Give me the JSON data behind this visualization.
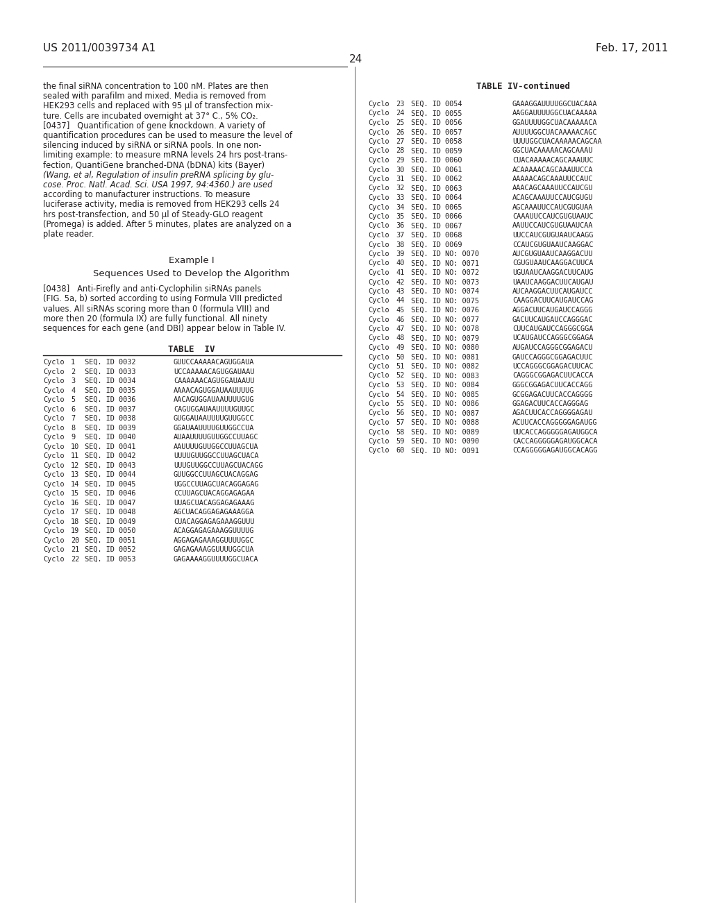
{
  "patent_number": "US 2011/0039734 A1",
  "date": "Feb. 17, 2011",
  "page_number": "24",
  "background_color": "#ffffff",
  "text_color": "#231f20",
  "paragraph_text": [
    "the final siRNA concentration to 100 nM. Plates are then",
    "sealed with parafilm and mixed. Media is removed from",
    "HEK293 cells and replaced with 95 μl of transfection mix-",
    "ture. Cells are incubated overnight at 37° C., 5% CO₂.",
    "[0437]   Quantification of gene knockdown. A variety of",
    "quantification procedures can be used to measure the level of",
    "silencing induced by siRNA or siRNA pools. In one non-",
    "limiting example: to measure mRNA levels 24 hrs post-trans-",
    "fection, QuantiGene branched-DNA (bDNA) kits (Bayer)",
    "(Wang, et al, Regulation of insulin preRNA splicing by glu-",
    "cose. Proc. Natl. Acad. Sci. USA 1997, 94:4360.) are used",
    "according to manufacturer instructions. To measure",
    "luciferase activity, media is removed from HEK293 cells 24",
    "hrs post-transfection, and 50 μl of Steady-GLO reagent",
    "(Promega) is added. After 5 minutes, plates are analyzed on a",
    "plate reader."
  ],
  "italic_indices": [
    9,
    10
  ],
  "example_title": "Example I",
  "example_subtitle": "Sequences Used to Develop the Algorithm",
  "paragraph2_text": [
    "[0438]   Anti-Firefly and anti-Cyclophilin siRNAs panels",
    "(FIG. 5a, b) sorted according to using Formula VIII predicted",
    "values. All siRNAs scoring more than 0 (formula VIII) and",
    "more then 20 (formula IX) are fully functional. All ninety",
    "sequences for each gene (and DBI) appear below in Table IV."
  ],
  "table_title": "TABLE  IV",
  "table_continued_title": "TABLE IV-continued",
  "table_left_rows": [
    [
      "Cyclo",
      "1",
      "SEQ. ID 0032",
      "GUUCCAAAAACAGUGGAUA"
    ],
    [
      "Cyclo",
      "2",
      "SEQ. ID 0033",
      "UCCAAAAACAGUGGAUAAU"
    ],
    [
      "Cyclo",
      "3",
      "SEQ. ID 0034",
      "CAAAAAACAGUGGAUAAUU"
    ],
    [
      "Cyclo",
      "4",
      "SEQ. ID 0035",
      "AAAACAGUGGAUAAUUUUG"
    ],
    [
      "Cyclo",
      "5",
      "SEQ. ID 0036",
      "AACAGUGGAUAAUUUUGUG"
    ],
    [
      "Cyclo",
      "6",
      "SEQ. ID 0037",
      "CAGUGGAUAAUUUUGUUGC"
    ],
    [
      "Cyclo",
      "7",
      "SEQ. ID 0038",
      "GUGGAUAAUUUUGUUGGCC"
    ],
    [
      "Cyclo",
      "8",
      "SEQ. ID 0039",
      "GGAUAAUUUUGUUGGCCUA"
    ],
    [
      "Cyclo",
      "9",
      "SEQ. ID 0040",
      "AUAAUUUUGUUGGCCUUAGC"
    ],
    [
      "Cyclo",
      "10",
      "SEQ. ID 0041",
      "AAUUUUGUUGGCCUUAGCUA"
    ],
    [
      "Cyclo",
      "11",
      "SEQ. ID 0042",
      "UUUUGUUGGCCUUAGCUACA"
    ],
    [
      "Cyclo",
      "12",
      "SEQ. ID 0043",
      "UUUGUUGGCCUUAGCUACAGG"
    ],
    [
      "Cyclo",
      "13",
      "SEQ. ID 0044",
      "GUUGGCCUUAGCUACAGGAG"
    ],
    [
      "Cyclo",
      "14",
      "SEQ. ID 0045",
      "UGGCCUUAGCUACAGGAGAG"
    ],
    [
      "Cyclo",
      "15",
      "SEQ. ID 0046",
      "CCUUAGCUACAGGAGAGAA"
    ],
    [
      "Cyclo",
      "16",
      "SEQ. ID 0047",
      "UUAGCUACAGGAGAGAAAG"
    ],
    [
      "Cyclo",
      "17",
      "SEQ. ID 0048",
      "AGCUACAGGAGAGAAAGGA"
    ],
    [
      "Cyclo",
      "18",
      "SEQ. ID 0049",
      "CUACAGGAGAGAAAGGUUU"
    ],
    [
      "Cyclo",
      "19",
      "SEQ. ID 0050",
      "ACAGGAGAGAAAGGUUUUG"
    ],
    [
      "Cyclo",
      "20",
      "SEQ. ID 0051",
      "AGGAGAGAAAGGUUUUGGC"
    ],
    [
      "Cyclo",
      "21",
      "SEQ. ID 0052",
      "GAGAGAAAGGUUUUGGCUA"
    ],
    [
      "Cyclo",
      "22",
      "SEQ. ID 0053",
      "GAGAAAAGGUUUUGGCUACA"
    ]
  ],
  "table_right_rows": [
    [
      "Cyclo",
      "23",
      "SEQ. ID 0054",
      "GAAAGGAUUUUGGCUACAAA"
    ],
    [
      "Cyclo",
      "24",
      "SEQ. ID 0055",
      "AAGGAUUUUGGCUACAAAAA"
    ],
    [
      "Cyclo",
      "25",
      "SEQ. ID 0056",
      "GGAUUUUGGCUACAAAAACA"
    ],
    [
      "Cyclo",
      "26",
      "SEQ. ID 0057",
      "AUUUUGGCUACAAAAACAGC"
    ],
    [
      "Cyclo",
      "27",
      "SEQ. ID 0058",
      "UUUUGGCUACAAAAACAGCAA"
    ],
    [
      "Cyclo",
      "28",
      "SEQ. ID 0059",
      "GGCUACAAAAACAGCAAAU"
    ],
    [
      "Cyclo",
      "29",
      "SEQ. ID 0060",
      "CUACAAAAACAGCAAAUUC"
    ],
    [
      "Cyclo",
      "30",
      "SEQ. ID 0061",
      "ACAAAAACAGCAAAUUCCA"
    ],
    [
      "Cyclo",
      "31",
      "SEQ. ID 0062",
      "AAAAACAGCAAAUUCCAUC"
    ],
    [
      "Cyclo",
      "32",
      "SEQ. ID 0063",
      "AAACAGCAAAUUCCAUCGU"
    ],
    [
      "Cyclo",
      "33",
      "SEQ. ID 0064",
      "ACAGCAAAUUCCAUCGUGU"
    ],
    [
      "Cyclo",
      "34",
      "SEQ. ID 0065",
      "AGCAAAUUCCAUCGUGUAA"
    ],
    [
      "Cyclo",
      "35",
      "SEQ. ID 0066",
      "CAAAUUCCAUCGUGUAAUC"
    ],
    [
      "Cyclo",
      "36",
      "SEQ. ID 0067",
      "AAUUCCAUCGUGUAAUCAA"
    ],
    [
      "Cyclo",
      "37",
      "SEQ. ID 0068",
      "UUCCAUCGUGUAAUCAAGG"
    ],
    [
      "Cyclo",
      "38",
      "SEQ. ID 0069",
      "CCAUCGUGUAAUCAAGGAC"
    ],
    [
      "Cyclo",
      "39",
      "SEQ. ID NO: 0070",
      "AUCGUGUAAUCAAGGACUU"
    ],
    [
      "Cyclo",
      "40",
      "SEQ. ID NO: 0071",
      "CGUGUAAUCAAGGACUUCA"
    ],
    [
      "Cyclo",
      "41",
      "SEQ. ID NO: 0072",
      "UGUAAUCAAGGACUUCAUG"
    ],
    [
      "Cyclo",
      "42",
      "SEQ. ID NO: 0073",
      "UAAUCAAGGACUUCAUGAU"
    ],
    [
      "Cyclo",
      "43",
      "SEQ. ID NO: 0074",
      "AUCAAGGACUUCAUGAUCC"
    ],
    [
      "Cyclo",
      "44",
      "SEQ. ID NO: 0075",
      "CAAGGACUUCAUGAUCCAG"
    ],
    [
      "Cyclo",
      "45",
      "SEQ. ID NO: 0076",
      "AGGACUUCAUGAUCCAGGG"
    ],
    [
      "Cyclo",
      "46",
      "SEQ. ID NO: 0077",
      "GACUUCAUGAUCCAGGGAC"
    ],
    [
      "Cyclo",
      "47",
      "SEQ. ID NO: 0078",
      "CUUCAUGAUCCAGGGCGGA"
    ],
    [
      "Cyclo",
      "48",
      "SEQ. ID NO: 0079",
      "UCAUGAUCCAGGGCGGAGA"
    ],
    [
      "Cyclo",
      "49",
      "SEQ. ID NO: 0080",
      "AUGAUCCAGGGCGGAGACU"
    ],
    [
      "Cyclo",
      "50",
      "SEQ. ID NO: 0081",
      "GAUCCAGGGCGGAGACUUC"
    ],
    [
      "Cyclo",
      "51",
      "SEQ. ID NO: 0082",
      "UCCAGGGCGGAGACUUCAC"
    ],
    [
      "Cyclo",
      "52",
      "SEQ. ID NO: 0083",
      "CAGGGCGGAGACUUCACCA"
    ],
    [
      "Cyclo",
      "53",
      "SEQ. ID NO: 0084",
      "GGGCGGAGACUUCACCAGG"
    ],
    [
      "Cyclo",
      "54",
      "SEQ. ID NO: 0085",
      "GCGGAGACUUCACCAGGGG"
    ],
    [
      "Cyclo",
      "55",
      "SEQ. ID NO: 0086",
      "GGAGACUUCACCAGGGAG"
    ],
    [
      "Cyclo",
      "56",
      "SEQ. ID NO: 0087",
      "AGACUUCACCAGGGGAGAU"
    ],
    [
      "Cyclo",
      "57",
      "SEQ. ID NO: 0088",
      "ACUUCACCAGGGGGAGAUGG"
    ],
    [
      "Cyclo",
      "58",
      "SEQ. ID NO: 0089",
      "UUCACCAGGGGGAGAUGGCA"
    ],
    [
      "Cyclo",
      "59",
      "SEQ. ID NO: 0090",
      "CACCAGGGGGAGAUGGCACA"
    ],
    [
      "Cyclo",
      "60",
      "SEQ. ID NO: 0091",
      "CCAGGGGGAGAUGGCACAGG"
    ]
  ]
}
